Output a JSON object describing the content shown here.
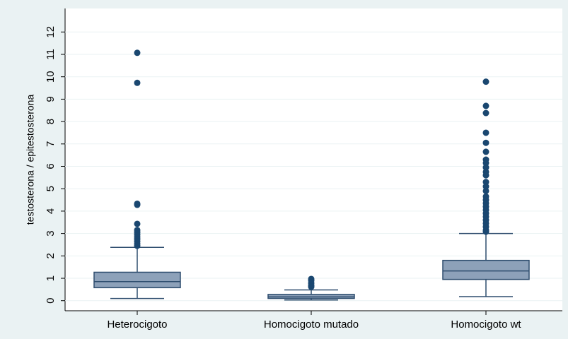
{
  "chart_data": {
    "type": "box",
    "y_label": "testosterona / epitestosterona",
    "categories": [
      "Heterocigoto",
      "Homocigoto mutado",
      "Homocigoto wt"
    ],
    "whisker_low": [
      0.1,
      0.03,
      0.18
    ],
    "q1": [
      0.58,
      0.1,
      0.95
    ],
    "median": [
      0.85,
      0.17,
      1.33
    ],
    "q3": [
      1.27,
      0.28,
      1.8
    ],
    "whisker_high": [
      2.38,
      0.48,
      3.0
    ],
    "outliers": [
      [
        11.07,
        9.73,
        4.33,
        4.28,
        3.43,
        3.15,
        3.05,
        2.95,
        2.85,
        2.75,
        2.65,
        2.55,
        2.45
      ],
      [
        0.97,
        0.9,
        0.78,
        0.68,
        0.62
      ],
      [
        9.78,
        8.7,
        8.38,
        7.5,
        7.05,
        6.65,
        6.3,
        6.15,
        5.95,
        5.75,
        5.6,
        5.3,
        5.1,
        4.9,
        4.65,
        4.5,
        4.35,
        4.2,
        4.05,
        3.9,
        3.75,
        3.6,
        3.45,
        3.3,
        3.15,
        3.08
      ]
    ],
    "box_color": "#8da1b9",
    "line_color": "#2e4d6e",
    "outlier_color": "#1a4770",
    "ylim": [
      -0.45,
      13.05
    ],
    "yticks": [
      0,
      1,
      2,
      3,
      4,
      5,
      6,
      7,
      8,
      9,
      10,
      11,
      12
    ]
  }
}
